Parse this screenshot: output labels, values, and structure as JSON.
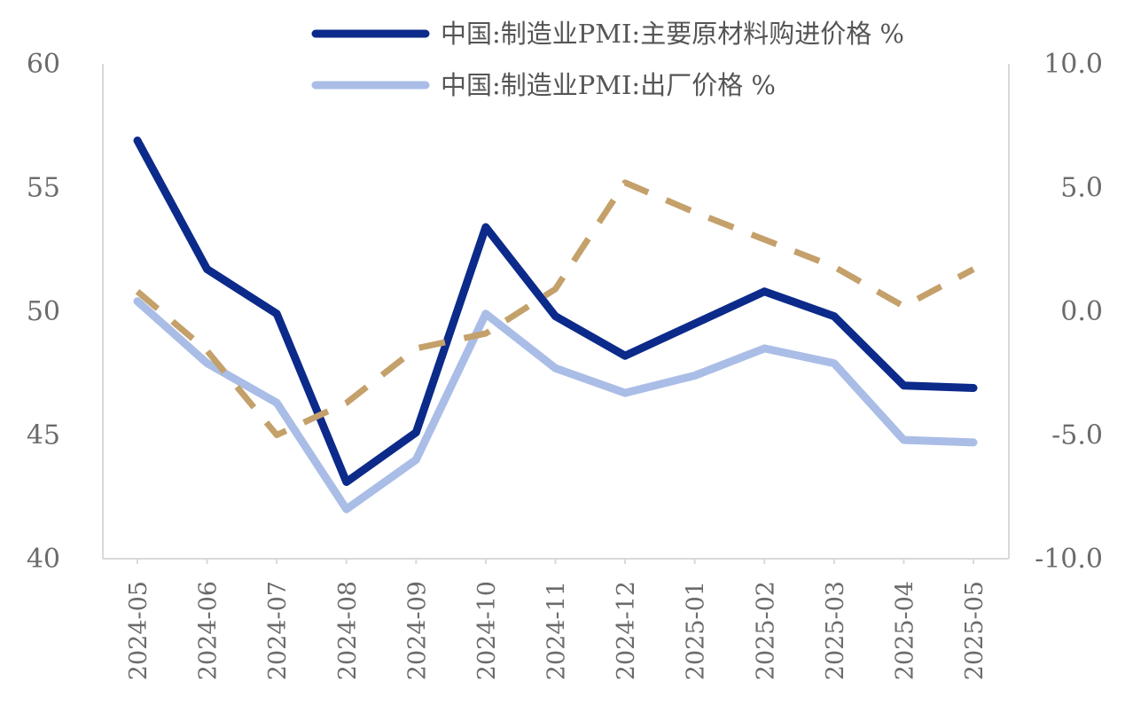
{
  "chart_data": {
    "type": "line",
    "categories": [
      "2024-05",
      "2024-06",
      "2024-07",
      "2024-08",
      "2024-09",
      "2024-10",
      "2024-11",
      "2024-12",
      "2025-01",
      "2025-02",
      "2025-03",
      "2025-04",
      "2025-05"
    ],
    "y_left": {
      "ylim": [
        40,
        60
      ],
      "ticks": [
        "40",
        "45",
        "50",
        "55",
        "60"
      ]
    },
    "y_right": {
      "ylim": [
        -10,
        10
      ],
      "ticks": [
        "-10.0",
        "-5.0",
        "0.0",
        "5.0",
        "10.0"
      ]
    },
    "series": [
      {
        "name": "中国:制造业PMI:主要原材料购进价格 %",
        "axis": "left",
        "color": "#0b2a8a",
        "style": "solid",
        "values": [
          56.9,
          51.7,
          49.9,
          43.1,
          45.1,
          53.4,
          49.8,
          48.2,
          49.5,
          50.8,
          49.8,
          47.0,
          46.9
        ]
      },
      {
        "name": "中国:制造业PMI:出厂价格 %",
        "axis": "left",
        "color": "#a9bde6",
        "style": "solid",
        "values": [
          50.4,
          47.9,
          46.3,
          42.0,
          44.0,
          49.9,
          47.7,
          46.7,
          47.4,
          48.5,
          47.9,
          44.8,
          44.7
        ]
      },
      {
        "axis": "right",
        "color": "#c4a06a",
        "style": "dashed",
        "values": [
          0.8,
          -1.6,
          -5.0,
          -3.7,
          -1.5,
          -0.9,
          0.9,
          5.2,
          4.0,
          2.9,
          1.8,
          0.2,
          1.7
        ]
      }
    ],
    "legend_position": "top-right",
    "grid": false
  }
}
